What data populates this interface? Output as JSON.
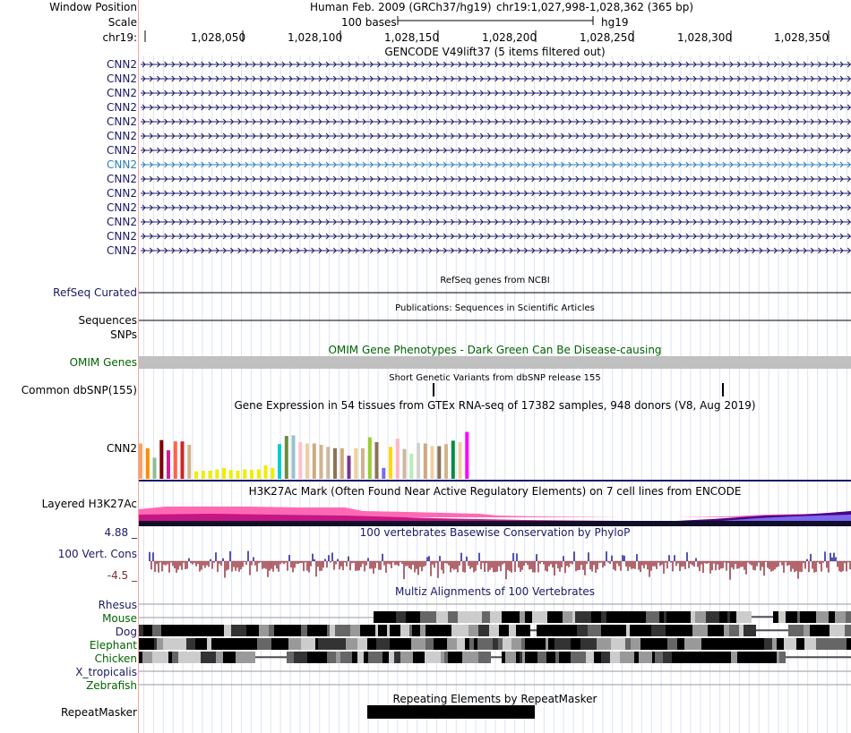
{
  "header": {
    "window_position_label": "Window Position",
    "assembly": "Human Feb. 2009 (GRCh37/hg19)",
    "position": "chr19:1,027,998-1,028,362 (365 bp)",
    "scale_label": "Scale",
    "scale_bar_text": "100 bases",
    "db": "hg19",
    "chrom_label": "chr19:",
    "ticks": [
      "1,028,050",
      "1,028,100",
      "1,028,150",
      "1,028,200",
      "1,028,250",
      "1,028,300",
      "1,028,350"
    ]
  },
  "gencode": {
    "title": "GENCODE V49lift37 (5 items filtered out)",
    "rows": [
      {
        "label": "CNN2",
        "color": "#1a1a66"
      },
      {
        "label": "CNN2",
        "color": "#1a1a66"
      },
      {
        "label": "CNN2",
        "color": "#1a1a66"
      },
      {
        "label": "CNN2",
        "color": "#1a1a66"
      },
      {
        "label": "CNN2",
        "color": "#1a1a66"
      },
      {
        "label": "CNN2",
        "color": "#1a1a66"
      },
      {
        "label": "CNN2",
        "color": "#1a1a66"
      },
      {
        "label": "CNN2",
        "color": "#2c7fb8"
      },
      {
        "label": "CNN2",
        "color": "#1a1a66"
      },
      {
        "label": "CNN2",
        "color": "#1a1a66"
      },
      {
        "label": "CNN2",
        "color": "#1a1a66"
      },
      {
        "label": "CNN2",
        "color": "#1a1a66"
      },
      {
        "label": "CNN2",
        "color": "#1a1a66"
      },
      {
        "label": "CNN2",
        "color": "#1a1a66"
      }
    ]
  },
  "refseq": {
    "title": "RefSeq genes from NCBI",
    "label": "RefSeq Curated"
  },
  "publications": {
    "title": "Publications: Sequences in Scientific Articles",
    "label": "Sequences"
  },
  "snps": {
    "label": "SNPs"
  },
  "omim": {
    "title": "OMIM Gene Phenotypes - Dark Green Can Be Disease-causing",
    "label": "OMIM Genes"
  },
  "dbsnp": {
    "title": "Short Genetic Variants from dbSNP release 155",
    "label": "Common dbSNP(155)"
  },
  "gtex": {
    "title": "Gene Expression in 54 tissues from GTEx RNA-seq of 17382 samples, 948 donors (V8, Aug 2019)",
    "label": "CNN2",
    "bars": [
      {
        "value": 0.52,
        "color": "#f4a460"
      },
      {
        "value": 0.45,
        "color": "#ff8c00"
      },
      {
        "value": 0.31,
        "color": "#8fbc8f"
      },
      {
        "value": 0.57,
        "color": "#800000"
      },
      {
        "value": 0.42,
        "color": "#d02090"
      },
      {
        "value": 0.55,
        "color": "#ff6347"
      },
      {
        "value": 0.55,
        "color": "#cd2626"
      },
      {
        "value": 0.5,
        "color": "#d2b48c"
      },
      {
        "value": 0.11,
        "color": "#eeee00"
      },
      {
        "value": 0.12,
        "color": "#eeee00"
      },
      {
        "value": 0.12,
        "color": "#eeee00"
      },
      {
        "value": 0.14,
        "color": "#eeee00"
      },
      {
        "value": 0.16,
        "color": "#eeee00"
      },
      {
        "value": 0.13,
        "color": "#eeee00"
      },
      {
        "value": 0.12,
        "color": "#eeee00"
      },
      {
        "value": 0.14,
        "color": "#eeee00"
      },
      {
        "value": 0.13,
        "color": "#eeee00"
      },
      {
        "value": 0.14,
        "color": "#eeee00"
      },
      {
        "value": 0.2,
        "color": "#eeee00"
      },
      {
        "value": 0.16,
        "color": "#eeee00"
      },
      {
        "value": 0.51,
        "color": "#00ced1"
      },
      {
        "value": 0.63,
        "color": "#6e8b3d"
      },
      {
        "value": 0.64,
        "color": "#9ac0cd"
      },
      {
        "value": 0.54,
        "color": "#ffc0cb"
      },
      {
        "value": 0.52,
        "color": "#eecfa1"
      },
      {
        "value": 0.52,
        "color": "#cdaa7d"
      },
      {
        "value": 0.5,
        "color": "#d2b48c"
      },
      {
        "value": 0.47,
        "color": "#cdb79e"
      },
      {
        "value": 0.45,
        "color": "#8b7355"
      },
      {
        "value": 0.45,
        "color": "#cdaa7d"
      },
      {
        "value": 0.34,
        "color": "#7a378b"
      },
      {
        "value": 0.45,
        "color": "#eecfa1"
      },
      {
        "value": 0.45,
        "color": "#d2b48c"
      },
      {
        "value": 0.61,
        "color": "#9acd32"
      },
      {
        "value": 0.54,
        "color": "#8b7355"
      },
      {
        "value": 0.16,
        "color": "#7b68ee"
      },
      {
        "value": 0.47,
        "color": "#ffd700"
      },
      {
        "value": 0.59,
        "color": "#ffb6c1"
      },
      {
        "value": 0.44,
        "color": "#cdb79e"
      },
      {
        "value": 0.37,
        "color": "#b4eeb4"
      },
      {
        "value": 0.53,
        "color": "#d3d3d3"
      },
      {
        "value": 0.52,
        "color": "#cdaa7d"
      },
      {
        "value": 0.48,
        "color": "#eecfa1"
      },
      {
        "value": 0.48,
        "color": "#8b7355"
      },
      {
        "value": 0.51,
        "color": "#d2b48c"
      },
      {
        "value": 0.56,
        "color": "#008b45"
      },
      {
        "value": 0.54,
        "color": "#eecfa1"
      },
      {
        "value": 0.69,
        "color": "#ff00ff"
      }
    ]
  },
  "h3k27ac": {
    "title": "H3K27Ac Mark (Often Found Near Active Regulatory Elements) on 7 cell lines from ENCODE",
    "label": "Layered H3K27Ac"
  },
  "conservation": {
    "title": "100 vertebrates Basewise Conservation by PhyloP",
    "label": "100 Vert. Cons",
    "ymax": "4.88 _",
    "ymin": "-4.5 _"
  },
  "multiz": {
    "title": "Multiz Alignments of 100 Vertebrates",
    "species": [
      {
        "label": "Rhesus",
        "color": "#1a1a66"
      },
      {
        "label": "Mouse",
        "color": "#006400"
      },
      {
        "label": "Dog",
        "color": "#1a1a66"
      },
      {
        "label": "Elephant",
        "color": "#006400"
      },
      {
        "label": "Chicken",
        "color": "#006400"
      },
      {
        "label": "X_tropicalis",
        "color": "#1a1a66"
      },
      {
        "label": "Zebrafish",
        "color": "#006400"
      }
    ]
  },
  "repeatmasker": {
    "title": "Repeating Elements by RepeatMasker",
    "label": "RepeatMasker"
  }
}
